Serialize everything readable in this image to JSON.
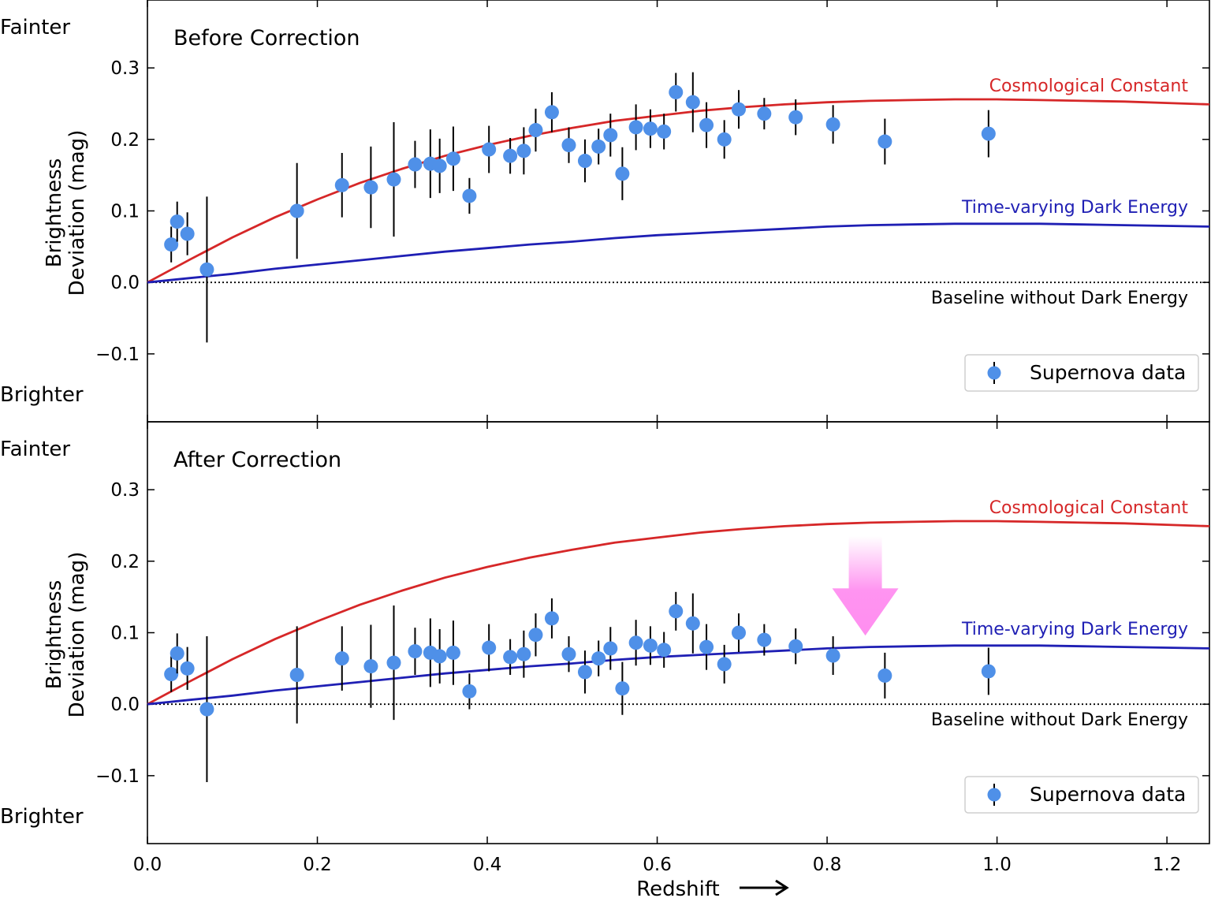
{
  "chart_data": {
    "type": "scatter",
    "xlabel": "Redshift",
    "ylabel": [
      "Brightness",
      "Deviation (mag)"
    ],
    "xlim": [
      0.0,
      1.25
    ],
    "ylim": [
      -0.195,
      0.395
    ],
    "xticks": [
      0.0,
      0.2,
      0.4,
      0.6,
      0.8,
      1.0,
      1.2
    ],
    "xtick_labels": [
      "0.0",
      "0.2",
      "0.4",
      "0.6",
      "0.8",
      "1.0",
      "1.2"
    ],
    "yticks": [
      -0.1,
      0.0,
      0.1,
      0.2,
      0.3
    ],
    "ytick_labels": [
      "−0.1",
      "0.0",
      "0.1",
      "0.2",
      "0.3"
    ],
    "top_side_label": "Fainter",
    "bottom_side_label": "Brighter",
    "colors": {
      "cosmological_constant": "#d62728",
      "dark_energy": "#1f1fb4",
      "data": "#4f90e8",
      "errorbar": "#000000",
      "arrow": "#ff8ef0"
    },
    "curves": {
      "cosmological_constant": {
        "label": "Cosmological Constant",
        "x": [
          0.0,
          0.05,
          0.1,
          0.15,
          0.2,
          0.25,
          0.3,
          0.35,
          0.4,
          0.45,
          0.5,
          0.55,
          0.6,
          0.65,
          0.7,
          0.75,
          0.8,
          0.85,
          0.9,
          0.95,
          1.0,
          1.05,
          1.1,
          1.15,
          1.2,
          1.25
        ],
        "y": [
          0.0,
          0.032,
          0.063,
          0.091,
          0.116,
          0.139,
          0.159,
          0.177,
          0.192,
          0.205,
          0.216,
          0.226,
          0.233,
          0.24,
          0.245,
          0.249,
          0.252,
          0.254,
          0.255,
          0.256,
          0.256,
          0.255,
          0.254,
          0.253,
          0.251,
          0.249
        ]
      },
      "dark_energy": {
        "label": "Time-varying Dark Energy",
        "x": [
          0.0,
          0.05,
          0.1,
          0.15,
          0.2,
          0.25,
          0.3,
          0.35,
          0.4,
          0.45,
          0.5,
          0.55,
          0.6,
          0.65,
          0.7,
          0.75,
          0.8,
          0.85,
          0.9,
          0.95,
          1.0,
          1.05,
          1.1,
          1.15,
          1.2,
          1.25
        ],
        "y": [
          0.0,
          0.006,
          0.012,
          0.019,
          0.025,
          0.031,
          0.037,
          0.043,
          0.048,
          0.053,
          0.057,
          0.062,
          0.066,
          0.069,
          0.072,
          0.075,
          0.078,
          0.08,
          0.081,
          0.082,
          0.082,
          0.082,
          0.081,
          0.08,
          0.079,
          0.078
        ]
      },
      "baseline": {
        "label": "Baseline without Dark Energy",
        "y": 0.0
      }
    },
    "legend": {
      "label": "Supernova data",
      "position": "lower right"
    },
    "panels": [
      {
        "title": "Before Correction",
        "series": [
          {
            "name": "Supernova data",
            "x": [
              0.028,
              0.035,
              0.047,
              0.07,
              0.176,
              0.229,
              0.263,
              0.29,
              0.315,
              0.333,
              0.344,
              0.36,
              0.379,
              0.402,
              0.427,
              0.443,
              0.457,
              0.476,
              0.496,
              0.515,
              0.531,
              0.545,
              0.559,
              0.575,
              0.592,
              0.608,
              0.622,
              0.642,
              0.658,
              0.679,
              0.696,
              0.726,
              0.763,
              0.807,
              0.868,
              0.99
            ],
            "y": [
              0.053,
              0.085,
              0.068,
              0.018,
              0.1,
              0.136,
              0.133,
              0.144,
              0.165,
              0.166,
              0.163,
              0.173,
              0.121,
              0.186,
              0.177,
              0.184,
              0.213,
              0.238,
              0.192,
              0.17,
              0.19,
              0.206,
              0.152,
              0.217,
              0.215,
              0.211,
              0.266,
              0.252,
              0.22,
              0.2,
              0.242,
              0.236,
              0.231,
              0.221,
              0.197,
              0.208
            ],
            "err": [
              0.025,
              0.028,
              0.03,
              0.102,
              0.067,
              0.045,
              0.057,
              0.08,
              0.033,
              0.048,
              0.038,
              0.045,
              0.025,
              0.033,
              0.025,
              0.033,
              0.03,
              0.028,
              0.025,
              0.03,
              0.025,
              0.03,
              0.037,
              0.032,
              0.027,
              0.025,
              0.027,
              0.042,
              0.032,
              0.027,
              0.027,
              0.022,
              0.025,
              0.027,
              0.032,
              0.033
            ]
          }
        ],
        "arrow": false
      },
      {
        "title": "After Correction",
        "series": [
          {
            "name": "Supernova data",
            "x": [
              0.028,
              0.035,
              0.047,
              0.07,
              0.176,
              0.229,
              0.263,
              0.29,
              0.315,
              0.333,
              0.344,
              0.36,
              0.379,
              0.402,
              0.427,
              0.443,
              0.457,
              0.476,
              0.496,
              0.515,
              0.531,
              0.545,
              0.559,
              0.575,
              0.592,
              0.608,
              0.622,
              0.642,
              0.658,
              0.679,
              0.696,
              0.726,
              0.763,
              0.807,
              0.868,
              0.99
            ],
            "y": [
              0.042,
              0.071,
              0.05,
              -0.007,
              0.041,
              0.064,
              0.053,
              0.058,
              0.074,
              0.072,
              0.067,
              0.072,
              0.018,
              0.079,
              0.066,
              0.07,
              0.097,
              0.12,
              0.07,
              0.045,
              0.064,
              0.078,
              0.022,
              0.086,
              0.082,
              0.076,
              0.13,
              0.113,
              0.08,
              0.056,
              0.1,
              0.09,
              0.081,
              0.068,
              0.04,
              0.046
            ],
            "err": [
              0.025,
              0.028,
              0.03,
              0.102,
              0.068,
              0.045,
              0.058,
              0.08,
              0.033,
              0.048,
              0.038,
              0.045,
              0.025,
              0.033,
              0.025,
              0.033,
              0.03,
              0.028,
              0.025,
              0.03,
              0.025,
              0.03,
              0.037,
              0.032,
              0.027,
              0.025,
              0.027,
              0.042,
              0.032,
              0.027,
              0.027,
              0.022,
              0.025,
              0.027,
              0.032,
              0.033
            ]
          }
        ],
        "arrow": true
      }
    ]
  }
}
